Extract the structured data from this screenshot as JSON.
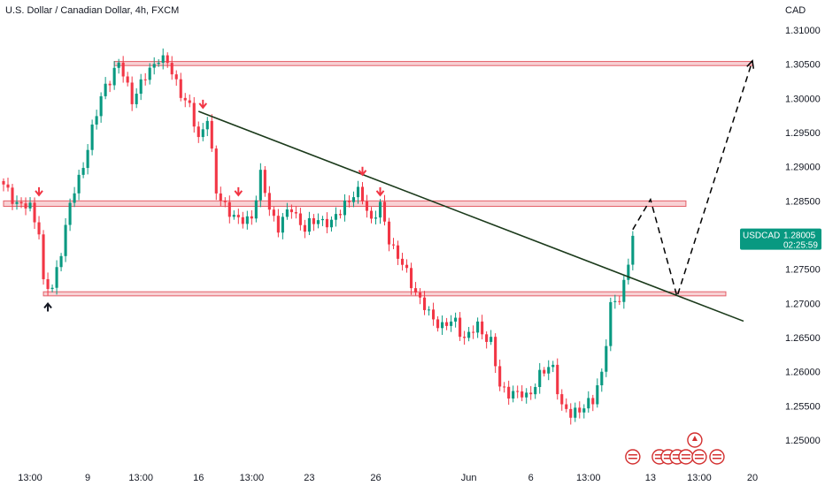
{
  "header": {
    "title": "U.S. Dollar / Canadian Dollar, 4h, FXCM",
    "currency": "CAD"
  },
  "price_tag": {
    "symbol": "USDCAD",
    "price": "1.28005",
    "countdown": "02:25:59",
    "color": "#089981"
  },
  "colors": {
    "up": "#089981",
    "down": "#f23645",
    "zone_fill": "#f7c9cd",
    "zone_border": "#e0454f",
    "trendline": "#1b3a1b",
    "projection": "#000000",
    "axis_text": "#131722"
  },
  "chart_data": {
    "type": "candlestick",
    "title": "U.S. Dollar / Canadian Dollar, 4h, FXCM",
    "ylabel": "CAD",
    "ylim": [
      1.2462,
      1.3125
    ],
    "y_ticks": [
      "1.31000",
      "1.30500",
      "1.30000",
      "1.29500",
      "1.29000",
      "1.28500",
      "1.28000",
      "1.27500",
      "1.27000",
      "1.26500",
      "1.26000",
      "1.25500",
      "1.25000"
    ],
    "x_ticks": [
      {
        "label": "13:00",
        "bar": 6
      },
      {
        "label": "9",
        "bar": 19
      },
      {
        "label": "13:00",
        "bar": 31
      },
      {
        "label": "16",
        "bar": 44
      },
      {
        "label": "13:00",
        "bar": 56
      },
      {
        "label": "23",
        "bar": 69
      },
      {
        "label": "26",
        "bar": 84
      },
      {
        "label": "Jun",
        "bar": 105
      },
      {
        "label": "6",
        "bar": 119
      },
      {
        "label": "13:00",
        "bar": 132
      },
      {
        "label": "13",
        "bar": 146
      },
      {
        "label": "13:00",
        "bar": 157
      },
      {
        "label": "20",
        "bar": 169
      }
    ],
    "total_bars": 170,
    "anchor_points": [
      [
        0,
        1.287
      ],
      [
        3,
        1.2848
      ],
      [
        6,
        1.2838
      ],
      [
        8,
        1.2808
      ],
      [
        9,
        1.273
      ],
      [
        11,
        1.2718
      ],
      [
        13,
        1.278
      ],
      [
        15,
        1.2845
      ],
      [
        17,
        1.288
      ],
      [
        20,
        1.2955
      ],
      [
        23,
        1.302
      ],
      [
        26,
        1.305
      ],
      [
        29,
        1.3
      ],
      [
        32,
        1.303
      ],
      [
        35,
        1.3062
      ],
      [
        37,
        1.305
      ],
      [
        40,
        1.301
      ],
      [
        42,
        1.2985
      ],
      [
        44,
        1.294
      ],
      [
        46,
        1.2975
      ],
      [
        48,
        1.286
      ],
      [
        50,
        1.2845
      ],
      [
        53,
        1.2818
      ],
      [
        56,
        1.2828
      ],
      [
        58,
        1.2885
      ],
      [
        60,
        1.284
      ],
      [
        62,
        1.2812
      ],
      [
        65,
        1.284
      ],
      [
        68,
        1.2808
      ],
      [
        71,
        1.2825
      ],
      [
        74,
        1.2815
      ],
      [
        77,
        1.2848
      ],
      [
        80,
        1.286
      ],
      [
        81,
        1.2855
      ],
      [
        83,
        1.2822
      ],
      [
        85,
        1.284
      ],
      [
        87,
        1.2795
      ],
      [
        90,
        1.2755
      ],
      [
        93,
        1.2718
      ],
      [
        96,
        1.2682
      ],
      [
        99,
        1.2668
      ],
      [
        102,
        1.2672
      ],
      [
        104,
        1.265
      ],
      [
        107,
        1.2665
      ],
      [
        110,
        1.2645
      ],
      [
        112,
        1.2575
      ],
      [
        115,
        1.257
      ],
      [
        118,
        1.2562
      ],
      [
        121,
        1.2595
      ],
      [
        124,
        1.2608
      ],
      [
        126,
        1.2548
      ],
      [
        128,
        1.2535
      ],
      [
        130,
        1.2548
      ],
      [
        133,
        1.2555
      ],
      [
        135,
        1.26
      ],
      [
        137,
        1.2695
      ],
      [
        139,
        1.2705
      ],
      [
        140,
        1.273
      ],
      [
        141,
        1.2765
      ],
      [
        142,
        1.28
      ]
    ],
    "zones": [
      {
        "name": "resistance-top",
        "y_low": 1.3048,
        "y_high": 1.3054,
        "x_from": 25,
        "x_to": 169
      },
      {
        "name": "resistance-mid",
        "y_low": 1.2842,
        "y_high": 1.285,
        "x_from": 0,
        "x_to": 154
      },
      {
        "name": "support-low",
        "y_low": 1.2711,
        "y_high": 1.2717,
        "x_from": 9,
        "x_to": 163
      }
    ],
    "trendline": {
      "from": [
        44,
        1.2981
      ],
      "to": [
        167,
        1.2674
      ]
    },
    "projection": [
      [
        142,
        1.2808
      ],
      [
        146,
        1.2852
      ],
      [
        152,
        1.271
      ],
      [
        169,
        1.3055
      ]
    ],
    "down_arrows": [
      [
        8,
        1.2857
      ],
      [
        53,
        1.2857
      ],
      [
        81,
        1.2887
      ],
      [
        85,
        1.2857
      ],
      [
        45,
        1.2985
      ]
    ],
    "up_arrows": [
      [
        10,
        1.2701
      ]
    ],
    "event_flags": {
      "row1": [
        142,
        148,
        150,
        152,
        154,
        157,
        161
      ],
      "row2": [
        156
      ]
    }
  }
}
